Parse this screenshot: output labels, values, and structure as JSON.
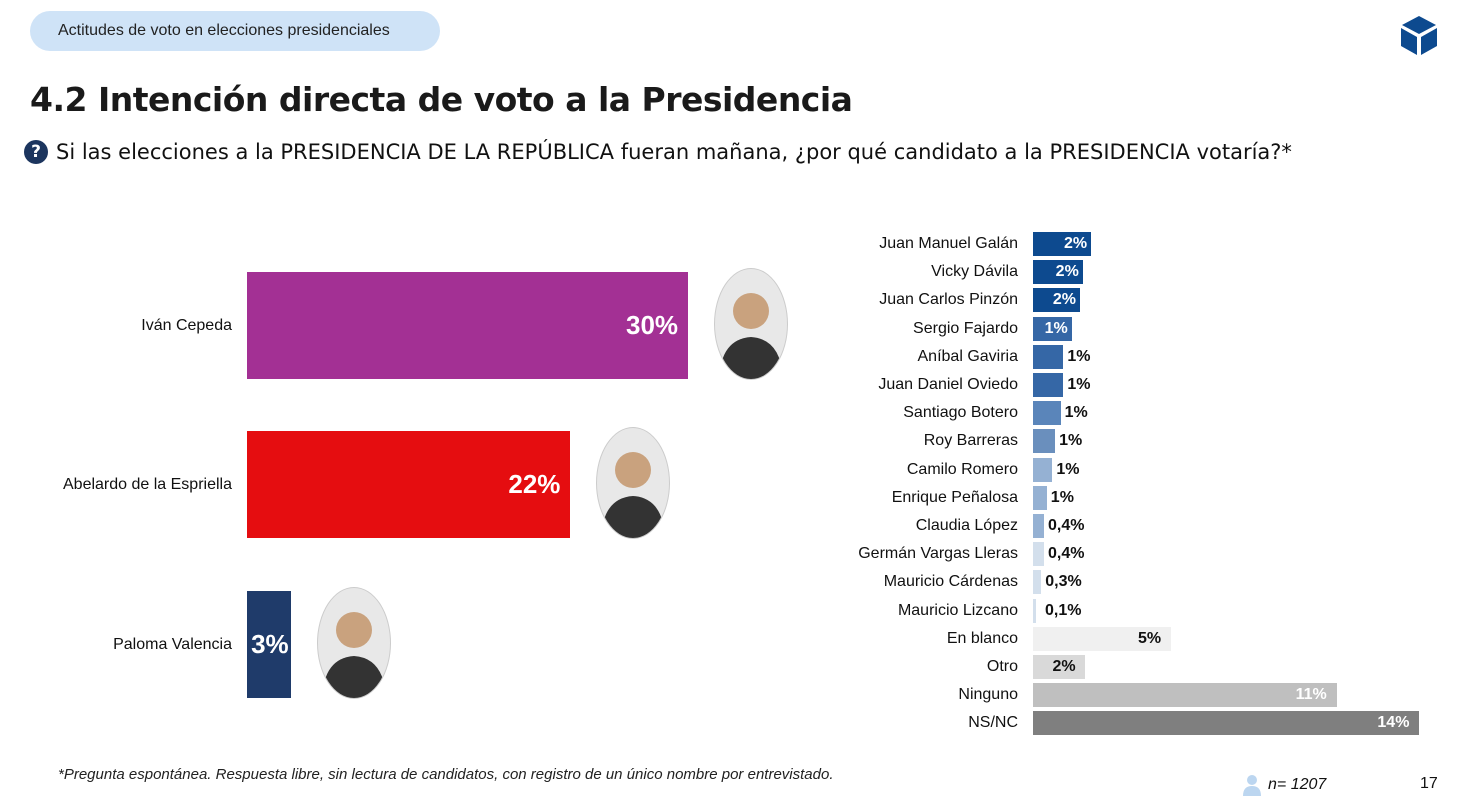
{
  "header": {
    "section_pill": "Actitudes de voto en elecciones presidenciales",
    "logo": "blue-cube-logo",
    "title": "4.2 Intención directa de voto a la Presidencia",
    "question_icon": "question-circle-icon",
    "question": "Si las elecciones a la PRESIDENCIA DE LA REPÚBLICA fueran mañana, ¿por qué candidato a la PRESIDENCIA votaría?*"
  },
  "chart_data": [
    {
      "type": "bar",
      "orientation": "horizontal",
      "categories": [
        "Iván Cepeda",
        "Abelardo de la Espriella",
        "Paloma Valencia"
      ],
      "values": [
        30,
        22,
        3
      ],
      "labels": [
        "30%",
        "22%",
        "3%"
      ],
      "colors": [
        "#a33094",
        "#e50d10",
        "#1f3b6a"
      ],
      "candidate_photos": true,
      "unit": "%"
    },
    {
      "type": "bar",
      "orientation": "horizontal",
      "categories": [
        "Juan Manuel Galán",
        "Vicky Dávila",
        "Juan Carlos Pinzón",
        "Sergio Fajardo",
        "Aníbal Gaviria",
        "Juan Daniel Oviedo",
        "Santiago Botero",
        "Roy Barreras",
        "Camilo Romero",
        "Enrique Peñalosa",
        "Claudia López",
        "Germán Vargas Lleras",
        "Mauricio Cárdenas",
        "Mauricio Lizcano",
        "En blanco",
        "Otro",
        "Ninguno",
        "NS/NC"
      ],
      "values": [
        2.1,
        1.8,
        1.7,
        1.4,
        1.1,
        1.1,
        1.0,
        0.8,
        0.7,
        0.5,
        0.4,
        0.4,
        0.3,
        0.1,
        5,
        1.9,
        11,
        14
      ],
      "labels": [
        "2%",
        "2%",
        "2%",
        "1%",
        "1%",
        "1%",
        "1%",
        "1%",
        "1%",
        "1%",
        "0,4%",
        "0,4%",
        "0,3%",
        "0,1%",
        "5%",
        "2%",
        "11%",
        "14%"
      ],
      "colors": [
        "#0d4a8f",
        "#0d4a8f",
        "#0d4a8f",
        "#3567a6",
        "#3567a6",
        "#3567a6",
        "#5a85ba",
        "#6a8fbd",
        "#95b1d3",
        "#95b1d3",
        "#95b1d3",
        "#d3dfec",
        "#d3dfec",
        "#d3dfec",
        "#f0f0f0",
        "#d9d9d9",
        "#bfbfbf",
        "#7f7f7f"
      ],
      "unit": "%"
    }
  ],
  "footer": {
    "note": "*Pregunta espontánea. Respuesta libre, sin lectura de candidatos, con registro de un único nombre por entrevistado.",
    "sample": "n= 1207",
    "page": "17"
  }
}
